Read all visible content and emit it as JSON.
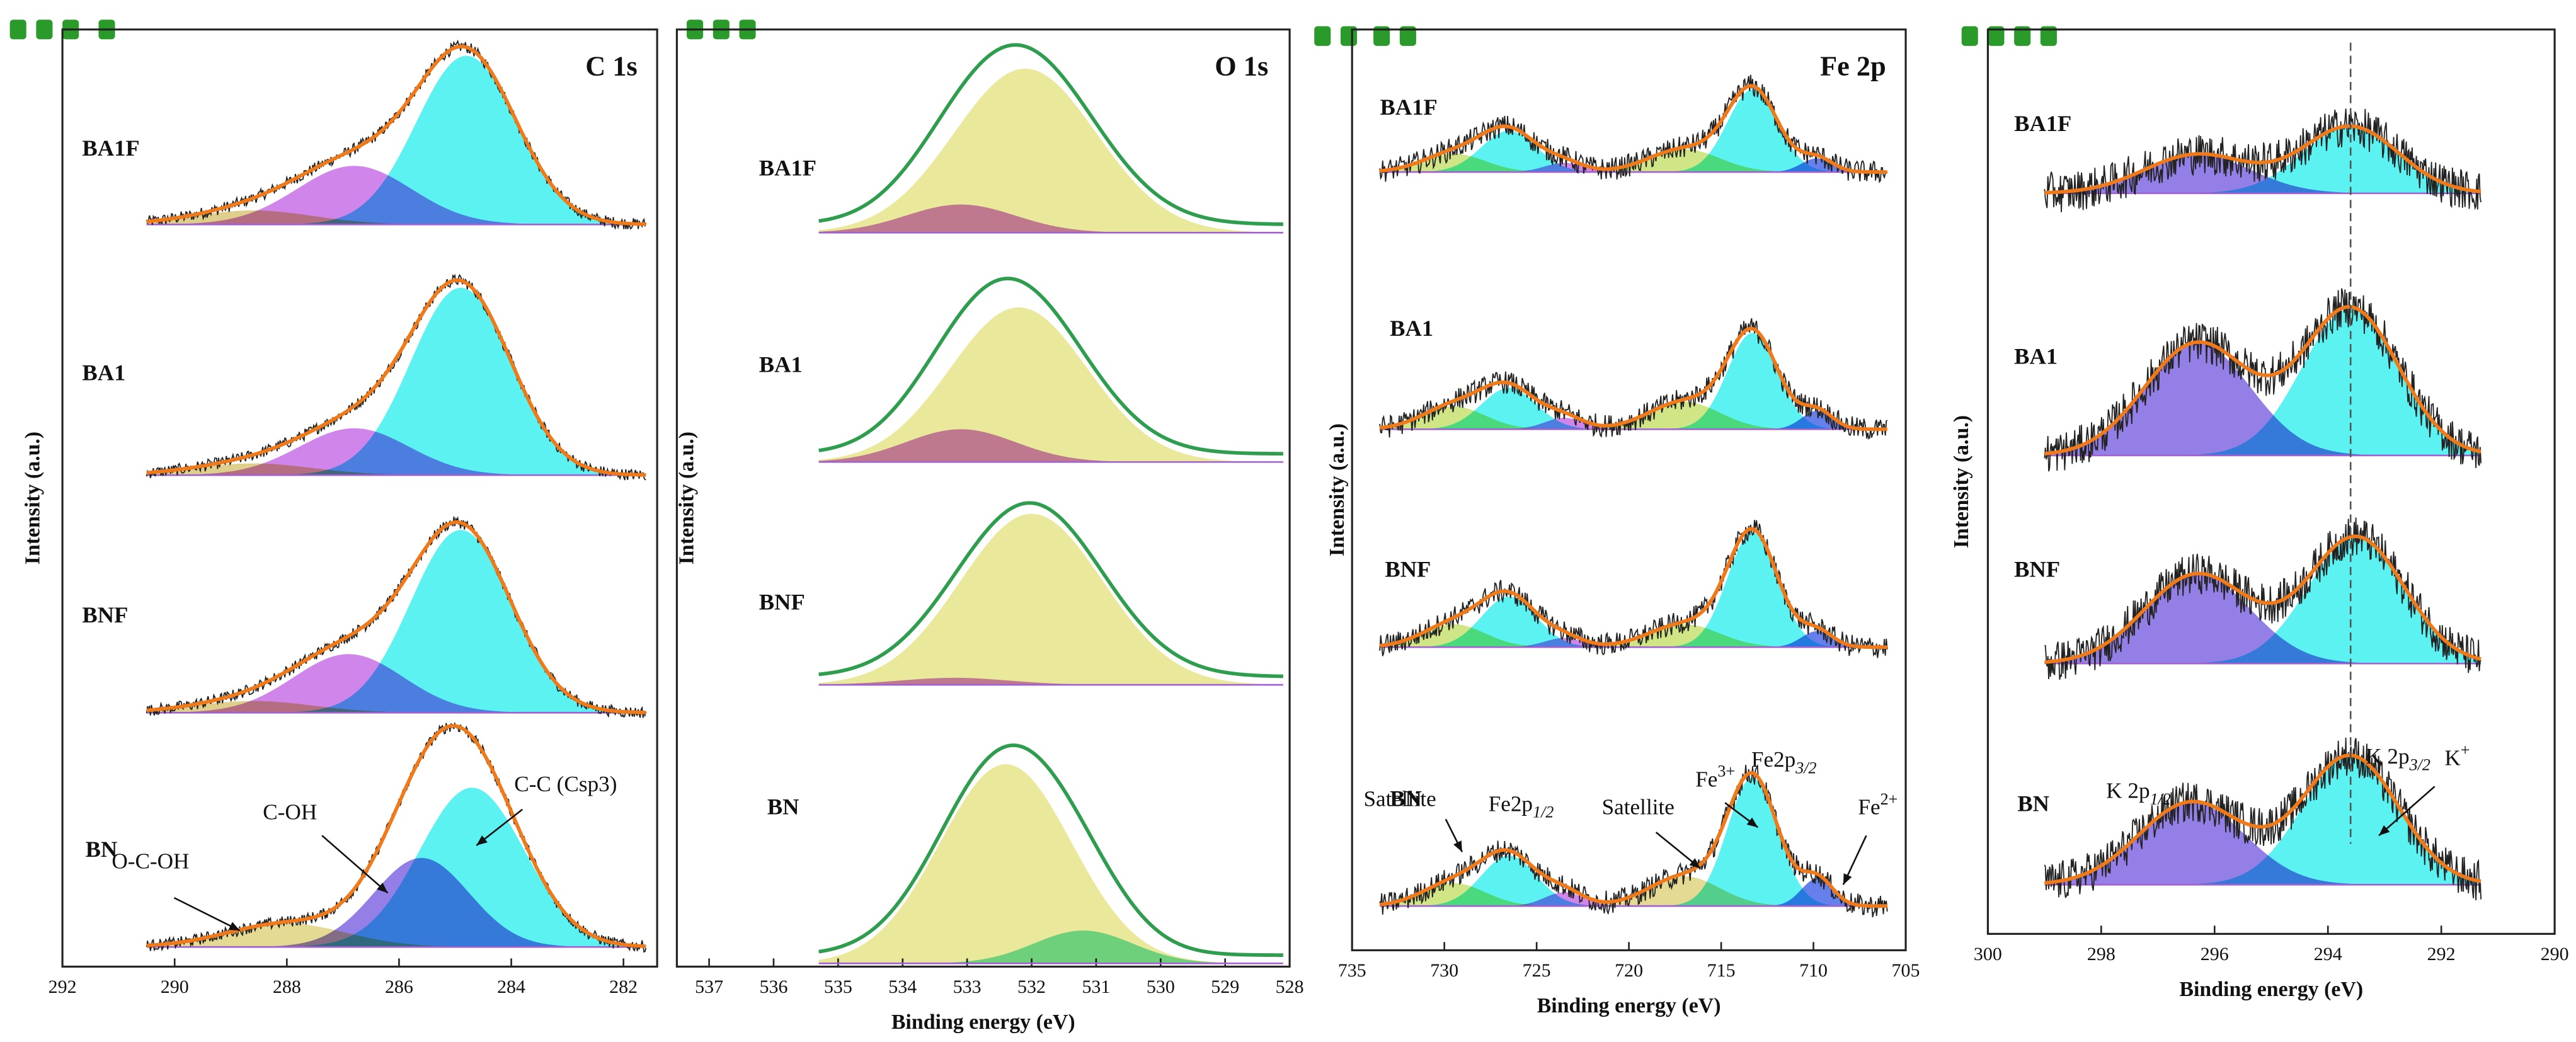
{
  "chart_data": [
    {
      "type": "xps",
      "title": "C 1s",
      "ylabel": "Intensity (a.u.)",
      "xlim": [
        292,
        281.4
      ],
      "xticks": [
        292,
        290,
        288,
        286,
        284,
        282
      ],
      "scan_range": [
        290.5,
        281.6
      ],
      "raw_spectrum": true,
      "envelope_color": "#f07a1a",
      "annotations": [
        {
          "text": "C-C (Csp3)"
        },
        {
          "text": "C-OH"
        },
        {
          "text": "O-C-OH"
        }
      ],
      "samples": [
        {
          "name": "BA1F",
          "peaks": [
            {
              "color": "#3ff0f0",
              "center": 284.8,
              "height": 0.72,
              "fwhm": 2.1
            },
            {
              "color": "#c870e8",
              "center": 286.8,
              "height": 0.25,
              "fwhm": 2.4
            },
            {
              "color": "#d8c878",
              "center": 288.6,
              "height": 0.06,
              "fwhm": 2.5
            }
          ]
        },
        {
          "name": "BA1",
          "peaks": [
            {
              "color": "#3ff0f0",
              "center": 284.9,
              "height": 0.8,
              "fwhm": 2.1
            },
            {
              "color": "#c870e8",
              "center": 286.8,
              "height": 0.2,
              "fwhm": 2.3
            },
            {
              "color": "#d8c878",
              "center": 288.6,
              "height": 0.05,
              "fwhm": 2.5
            }
          ]
        },
        {
          "name": "BNF",
          "peaks": [
            {
              "color": "#3ff0f0",
              "center": 284.9,
              "height": 0.78,
              "fwhm": 2.1
            },
            {
              "color": "#c870e8",
              "center": 286.9,
              "height": 0.25,
              "fwhm": 2.3
            },
            {
              "color": "#d8c878",
              "center": 288.6,
              "height": 0.05,
              "fwhm": 2.5
            }
          ]
        },
        {
          "name": "BN",
          "peaks": [
            {
              "color": "#3ff0f0",
              "center": 284.7,
              "height": 0.68,
              "fwhm": 2.2
            },
            {
              "color": "#8068e0",
              "center": 285.6,
              "height": 0.38,
              "fwhm": 2.0
            },
            {
              "color": "#e0d480",
              "center": 288.0,
              "height": 0.1,
              "fwhm": 2.5
            }
          ]
        }
      ]
    },
    {
      "type": "xps",
      "title": "O 1s",
      "xlabel": "Binding energy (eV)",
      "ylabel": "Intensity (a.u.)",
      "xlim": [
        537.5,
        528
      ],
      "xticks": [
        537,
        536,
        535,
        534,
        533,
        532,
        531,
        530,
        529,
        528
      ],
      "scan_range": [
        535.3,
        528.1
      ],
      "raw_spectrum": false,
      "envelope_color": "#2e9e4e",
      "samples": [
        {
          "name": "BA1F",
          "peaks": [
            {
              "color": "#e6e48a",
              "center": 532.1,
              "height": 0.7,
              "fwhm": 2.6
            },
            {
              "color": "#c870e8",
              "center": 533.1,
              "height": 0.12,
              "fwhm": 2.0
            }
          ]
        },
        {
          "name": "BA1",
          "peaks": [
            {
              "color": "#e6e48a",
              "center": 532.2,
              "height": 0.66,
              "fwhm": 2.5
            },
            {
              "color": "#c870e8",
              "center": 533.1,
              "height": 0.14,
              "fwhm": 2.0
            }
          ]
        },
        {
          "name": "BNF",
          "peaks": [
            {
              "color": "#e6e48a",
              "center": 532.0,
              "height": 0.73,
              "fwhm": 2.6
            },
            {
              "color": "#c870e8",
              "center": 533.2,
              "height": 0.03,
              "fwhm": 2.0
            }
          ]
        },
        {
          "name": "BN",
          "peaks": [
            {
              "color": "#e6e48a",
              "center": 532.4,
              "height": 0.85,
              "fwhm": 2.4
            },
            {
              "color": "#60e0c0",
              "center": 531.2,
              "height": 0.14,
              "fwhm": 1.8
            }
          ]
        }
      ]
    },
    {
      "type": "xps",
      "title": "Fe 2p",
      "xlabel": "Binding energy (eV)",
      "ylabel": "Intensity (a.u.)",
      "xlim": [
        735,
        705
      ],
      "xticks": [
        735,
        730,
        725,
        720,
        715,
        710,
        705
      ],
      "scan_range": [
        733.5,
        706
      ],
      "raw_spectrum": true,
      "envelope_color": "#f07a1a",
      "annotations": [
        {
          "text": "Satellite"
        },
        {
          "text": "Fe2p",
          "sub": "1/2"
        },
        {
          "text": "Satellite"
        },
        {
          "text": "Fe",
          "sup": "3+"
        },
        {
          "text": "Fe2p",
          "sub": "3/2"
        },
        {
          "text": "Fe",
          "sup": "2+"
        }
      ],
      "samples": [
        {
          "name": "BA1F",
          "peaks": [
            {
              "color": "#3ff0f0",
              "center": 713.3,
              "height": 0.36,
              "fwhm": 3.2
            },
            {
              "color": "#3ff0f0",
              "center": 726.5,
              "height": 0.18,
              "fwhm": 3.5
            },
            {
              "color": "#c8e070",
              "center": 729.5,
              "height": 0.08,
              "fwhm": 4
            },
            {
              "color": "#c8e070",
              "center": 717,
              "height": 0.1,
              "fwhm": 4.5
            },
            {
              "color": "#4a6ae8",
              "center": 709.8,
              "height": 0.06,
              "fwhm": 2
            },
            {
              "color": "#c870e8",
              "center": 723.5,
              "height": 0.04,
              "fwhm": 2.5
            }
          ]
        },
        {
          "name": "BA1",
          "peaks": [
            {
              "color": "#3ff0f0",
              "center": 713.3,
              "height": 0.42,
              "fwhm": 3.2
            },
            {
              "color": "#3ff0f0",
              "center": 726.5,
              "height": 0.18,
              "fwhm": 3.5
            },
            {
              "color": "#c8e070",
              "center": 729.5,
              "height": 0.1,
              "fwhm": 4
            },
            {
              "color": "#c8e070",
              "center": 717,
              "height": 0.12,
              "fwhm": 4.5
            },
            {
              "color": "#4a6ae8",
              "center": 709.8,
              "height": 0.08,
              "fwhm": 2
            },
            {
              "color": "#c870e8",
              "center": 723.5,
              "height": 0.05,
              "fwhm": 2.5
            }
          ]
        },
        {
          "name": "BNF",
          "peaks": [
            {
              "color": "#3ff0f0",
              "center": 713.3,
              "height": 0.5,
              "fwhm": 3.2
            },
            {
              "color": "#3ff0f0",
              "center": 726.5,
              "height": 0.22,
              "fwhm": 3.5
            },
            {
              "color": "#c8e070",
              "center": 729.5,
              "height": 0.1,
              "fwhm": 4
            },
            {
              "color": "#c8e070",
              "center": 717,
              "height": 0.1,
              "fwhm": 4.5
            },
            {
              "color": "#4a6ae8",
              "center": 709.8,
              "height": 0.07,
              "fwhm": 2
            },
            {
              "color": "#c870e8",
              "center": 723.5,
              "height": 0.04,
              "fwhm": 2.5
            }
          ]
        },
        {
          "name": "BN",
          "peaks": [
            {
              "color": "#3ff0f0",
              "center": 713.3,
              "height": 0.56,
              "fwhm": 3.2
            },
            {
              "color": "#3ff0f0",
              "center": 726.5,
              "height": 0.22,
              "fwhm": 3.5
            },
            {
              "color": "#c8e070",
              "center": 729.5,
              "height": 0.1,
              "fwhm": 4
            },
            {
              "color": "#e0d480",
              "center": 717,
              "height": 0.13,
              "fwhm": 4.5
            },
            {
              "color": "#4a6ae8",
              "center": 709.8,
              "height": 0.12,
              "fwhm": 2
            },
            {
              "color": "#c870e8",
              "center": 723.5,
              "height": 0.06,
              "fwhm": 2.5
            }
          ]
        }
      ]
    },
    {
      "type": "xps",
      "xlabel": "Binding energy (eV)",
      "ylabel": "Intensity (a.u.)",
      "xlim": [
        300,
        290
      ],
      "xticks": [
        300,
        298,
        296,
        294,
        292,
        290
      ],
      "scan_range": [
        299,
        291.3
      ],
      "raw_spectrum": true,
      "envelope_color": "#f07a1a",
      "reference_line": 293.6,
      "annotations": [
        {
          "text": "K 2p",
          "sub": "1/2"
        },
        {
          "text": "K 2p",
          "sub": "3/2"
        },
        {
          "text": "K",
          "sup": "+"
        }
      ],
      "samples": [
        {
          "name": "BA1F",
          "peaks": [
            {
              "color": "#8068e0",
              "center": 296.3,
              "height": 0.17,
              "fwhm": 2.2
            },
            {
              "color": "#3ff0f0",
              "center": 293.6,
              "height": 0.29,
              "fwhm": 2.0
            }
          ]
        },
        {
          "name": "BA1",
          "peaks": [
            {
              "color": "#8068e0",
              "center": 296.3,
              "height": 0.49,
              "fwhm": 2.2
            },
            {
              "color": "#3ff0f0",
              "center": 293.6,
              "height": 0.64,
              "fwhm": 2.0
            }
          ]
        },
        {
          "name": "BNF",
          "peaks": [
            {
              "color": "#8068e0",
              "center": 296.3,
              "height": 0.39,
              "fwhm": 2.2
            },
            {
              "color": "#3ff0f0",
              "center": 293.5,
              "height": 0.55,
              "fwhm": 2.0
            }
          ]
        },
        {
          "name": "BN",
          "peaks": [
            {
              "color": "#8068e0",
              "center": 296.4,
              "height": 0.36,
              "fwhm": 2.2
            },
            {
              "color": "#3ff0f0",
              "center": 293.6,
              "height": 0.56,
              "fwhm": 2.0
            }
          ]
        }
      ]
    }
  ]
}
